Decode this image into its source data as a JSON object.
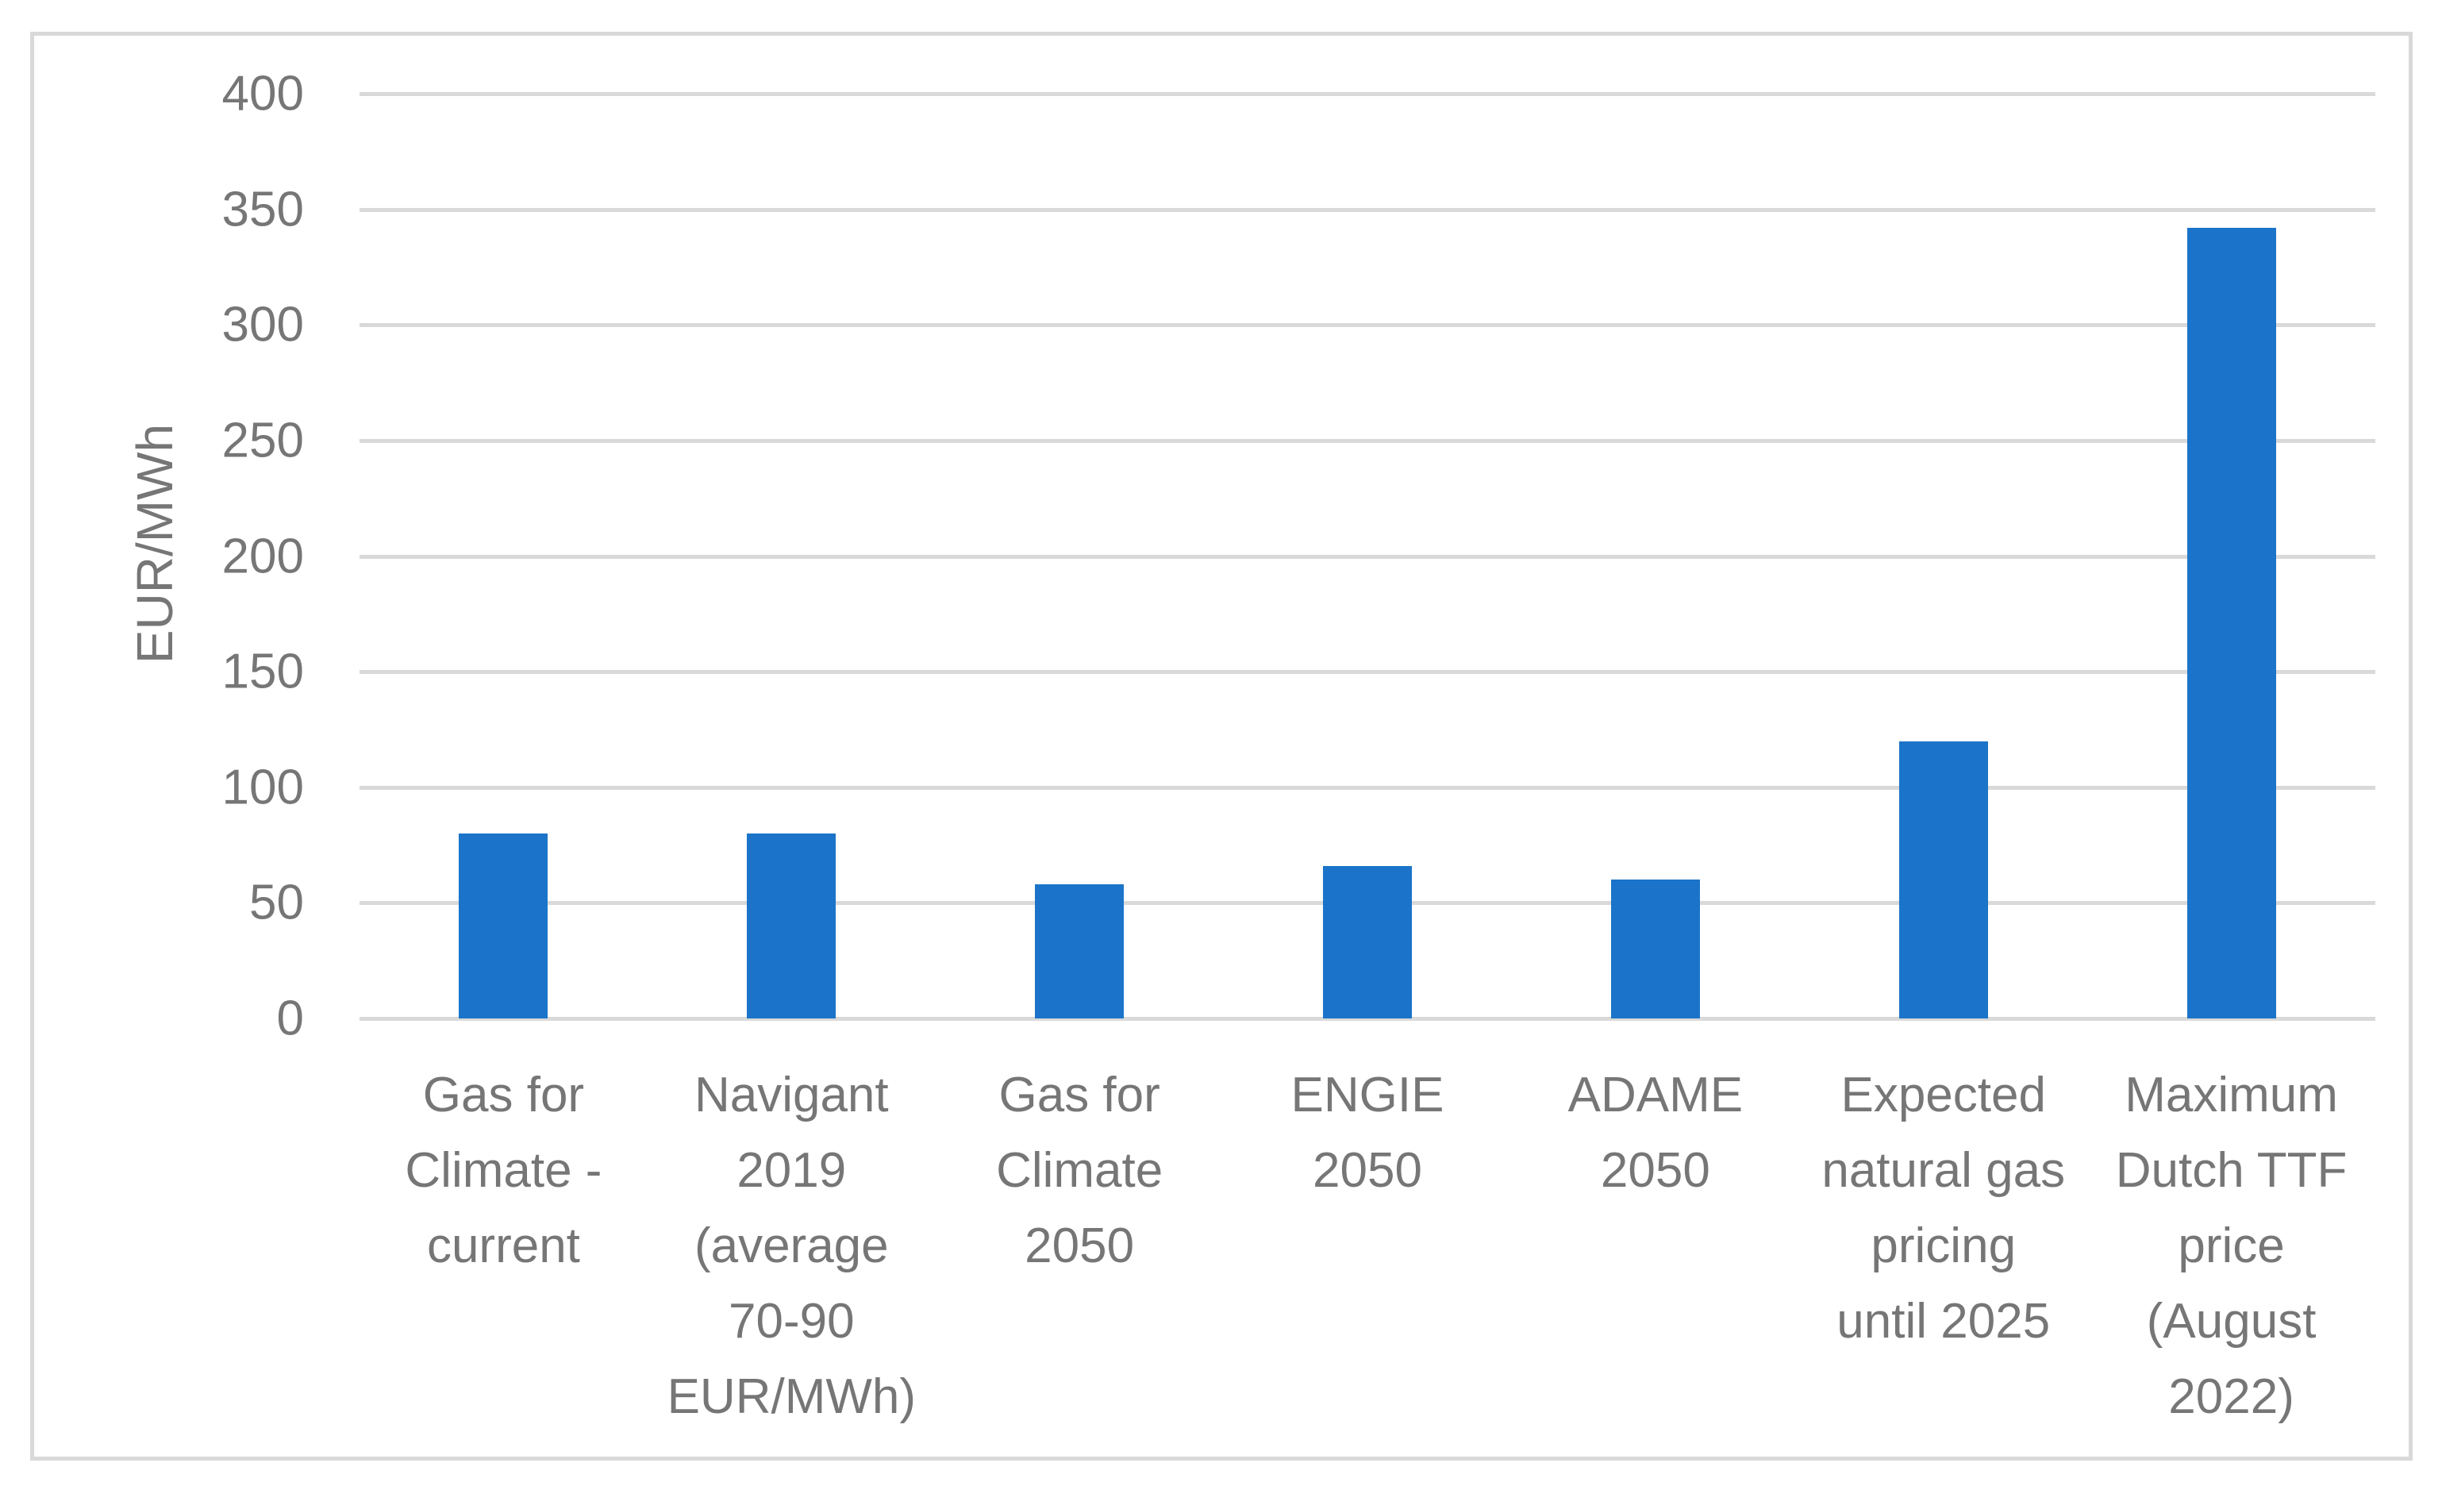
{
  "chart_data": {
    "type": "bar",
    "title": "",
    "xlabel": "",
    "ylabel": "EUR/MWh",
    "categories": [
      "Gas for Climate - current",
      "Navigant 2019 (average 70-90 EUR/MWh)",
      "Gas for Climate 2050",
      "ENGIE 2050",
      "ADAME 2050",
      "Expected natural gas pricing until 2025",
      "Maximum Dutch TTF price (August 2022)"
    ],
    "category_lines": [
      [
        "Gas for",
        "Climate -",
        "current"
      ],
      [
        "Navigant",
        "2019",
        "(average",
        "70-90",
        "EUR/MWh)"
      ],
      [
        "Gas for",
        "Climate",
        "2050"
      ],
      [
        "ENGIE",
        "2050"
      ],
      [
        "ADAME",
        "2050"
      ],
      [
        "Expected",
        "natural gas",
        "pricing",
        "until 2025"
      ],
      [
        "Maximum",
        "Dutch TTF",
        "price",
        "(August",
        "2022)"
      ]
    ],
    "values": [
      80,
      80,
      58,
      66,
      60,
      120,
      342
    ],
    "ylim": [
      0,
      400
    ],
    "yticks": [
      0,
      50,
      100,
      150,
      200,
      250,
      300,
      350,
      400
    ],
    "grid": "horizontal",
    "legend": "none",
    "colors": {
      "bar": "#1B74C9",
      "gridline": "#D9D9D9",
      "frame_border": "#D9D9D9",
      "text": "#767676",
      "background": "#FFFFFF"
    }
  }
}
